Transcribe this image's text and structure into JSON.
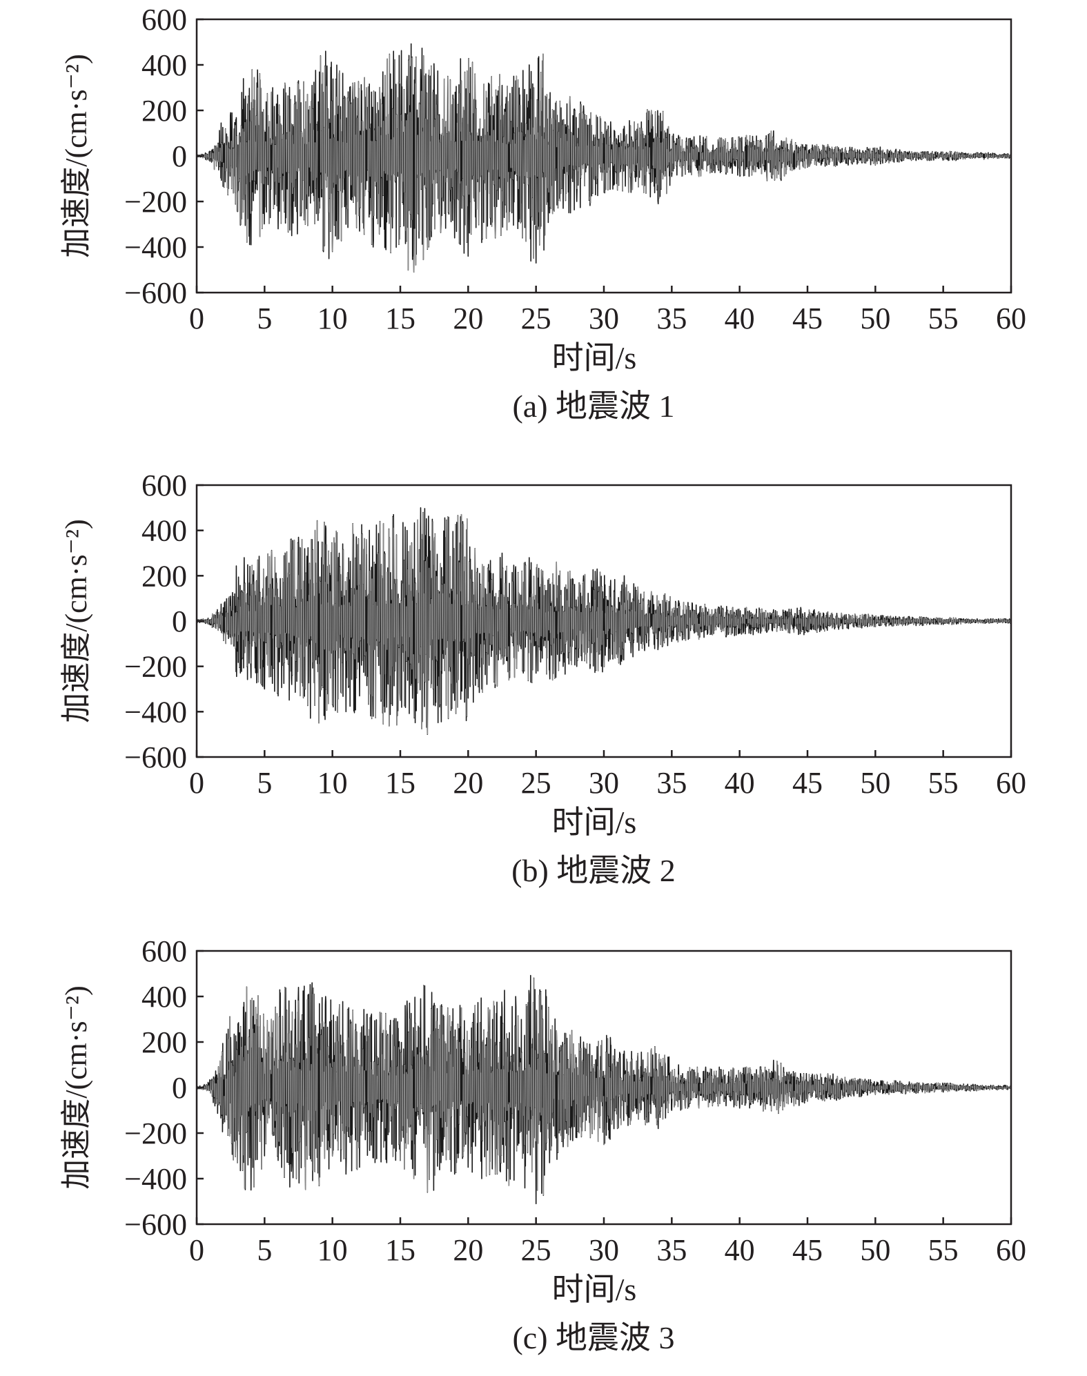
{
  "figure": {
    "panels": [
      {
        "caption": "(a) 地震波 1",
        "xlabel": "时间/s",
        "ylabel": "加速度/(cm·s⁻²)"
      },
      {
        "caption": "(b) 地震波 2",
        "xlabel": "时间/s",
        "ylabel": "加速度/(cm·s⁻²)"
      },
      {
        "caption": "(c) 地震波 3",
        "xlabel": "时间/s",
        "ylabel": "加速度/(cm·s⁻²)"
      }
    ],
    "colors": {
      "trace": "#1a1a1a",
      "trace_light": "#8a8a8a",
      "axis": "#231f20"
    }
  },
  "chart_data": [
    {
      "type": "line",
      "title": "(a) 地震波 1",
      "xlabel": "时间/s",
      "ylabel": "加速度/(cm·s⁻²)",
      "xlim": [
        0,
        60
      ],
      "ylim": [
        -600,
        600
      ],
      "xticks": [
        0,
        5,
        10,
        15,
        20,
        25,
        30,
        35,
        40,
        45,
        50,
        55,
        60
      ],
      "yticks": [
        600,
        400,
        200,
        0,
        -200,
        -400,
        -600
      ],
      "grid": false,
      "series": [
        {
          "x": [
            0,
            0.5,
            1,
            1.5,
            2,
            2.5,
            3,
            3.5,
            4,
            4.5,
            5,
            5.5,
            6,
            6.5,
            7,
            7.5,
            8,
            8.5,
            9,
            9.5,
            10,
            10.5,
            11,
            11.5,
            12,
            12.5,
            13,
            13.5,
            14,
            14.5,
            15,
            15.5,
            16,
            16.5,
            17,
            17.5,
            18,
            18.5,
            19,
            19.5,
            20,
            20.5,
            21,
            21.5,
            22,
            22.5,
            23,
            23.5,
            24,
            24.5,
            25,
            25.5,
            26,
            26.5,
            27,
            27.5,
            28,
            28.5,
            29,
            29.5,
            30,
            30.5,
            31,
            31.5,
            32,
            32.5,
            33,
            33.5,
            34,
            34.5,
            35,
            35.5,
            36,
            36.5,
            37,
            37.5,
            38,
            38.5,
            39,
            39.5,
            40,
            40.5,
            41,
            41.5,
            42,
            42.5,
            43,
            43.5,
            44,
            44.5,
            45,
            45.5,
            46,
            46.5,
            47,
            47.5,
            48,
            48.5,
            49,
            49.5,
            50,
            50.5,
            51,
            51.5,
            52,
            52.5,
            53,
            53.5,
            54,
            54.5,
            55,
            55.5,
            56,
            56.5,
            57,
            57.5,
            58,
            58.5,
            59,
            59.5,
            60
          ],
          "y": [
            0,
            5,
            -10,
            30,
            -80,
            190,
            -160,
            250,
            -390,
            300,
            -200,
            280,
            -320,
            320,
            -350,
            330,
            -300,
            310,
            -250,
            460,
            -420,
            360,
            -300,
            320,
            -330,
            300,
            -400,
            250,
            -290,
            460,
            -310,
            350,
            -510,
            380,
            -410,
            340,
            -300,
            350,
            -360,
            330,
            -440,
            360,
            -380,
            320,
            -360,
            310,
            -290,
            330,
            -360,
            400,
            -470,
            300,
            -250,
            240,
            -230,
            260,
            -200,
            220,
            -180,
            170,
            -160,
            150,
            -150,
            130,
            -160,
            140,
            -130,
            200,
            -210,
            100,
            -90,
            90,
            -80,
            70,
            -90,
            60,
            -70,
            70,
            -80,
            80,
            -70,
            90,
            -60,
            60,
            -90,
            110,
            -100,
            50,
            -60,
            40,
            -50,
            40,
            -40,
            50,
            -40,
            30,
            -40,
            30,
            -30,
            30,
            -40,
            20,
            -30,
            25,
            -20,
            20,
            -20,
            15,
            -20,
            15,
            -15,
            20,
            -15,
            10,
            -10,
            10,
            -15,
            10,
            -10,
            10,
            0
          ]
        }
      ]
    },
    {
      "type": "line",
      "title": "(b) 地震波 2",
      "xlabel": "时间/s",
      "ylabel": "加速度/(cm·s⁻²)",
      "xlim": [
        0,
        60
      ],
      "ylim": [
        -600,
        600
      ],
      "xticks": [
        0,
        5,
        10,
        15,
        20,
        25,
        30,
        35,
        40,
        45,
        50,
        55,
        60
      ],
      "yticks": [
        600,
        400,
        200,
        0,
        -200,
        -400,
        -600
      ],
      "grid": false,
      "series": [
        {
          "x": [
            0,
            0.5,
            1,
            1.5,
            2,
            2.5,
            3,
            3.5,
            4,
            4.5,
            5,
            5.5,
            6,
            6.5,
            7,
            7.5,
            8,
            8.5,
            9,
            9.5,
            10,
            10.5,
            11,
            11.5,
            12,
            12.5,
            13,
            13.5,
            14,
            14.5,
            15,
            15.5,
            16,
            16.5,
            17,
            17.5,
            18,
            18.5,
            19,
            19.5,
            20,
            20.5,
            21,
            21.5,
            22,
            22.5,
            23,
            23.5,
            24,
            24.5,
            25,
            25.5,
            26,
            26.5,
            27,
            27.5,
            28,
            28.5,
            29,
            29.5,
            30,
            30.5,
            31,
            31.5,
            32,
            32.5,
            33,
            33.5,
            34,
            34.5,
            35,
            35.5,
            36,
            36.5,
            37,
            37.5,
            38,
            38.5,
            39,
            39.5,
            40,
            40.5,
            41,
            41.5,
            42,
            42.5,
            43,
            43.5,
            44,
            44.5,
            45,
            45.5,
            46,
            46.5,
            47,
            47.5,
            48,
            48.5,
            49,
            49.5,
            50,
            50.5,
            51,
            51.5,
            52,
            52.5,
            53,
            53.5,
            54,
            54.5,
            55,
            55.5,
            56,
            56.5,
            57,
            57.5,
            58,
            58.5,
            59,
            59.5,
            60
          ],
          "y": [
            0,
            5,
            -10,
            20,
            -60,
            110,
            -90,
            280,
            -250,
            270,
            -300,
            290,
            -330,
            300,
            -280,
            370,
            -300,
            360,
            -450,
            420,
            -370,
            300,
            -400,
            430,
            -330,
            360,
            -420,
            440,
            -380,
            470,
            -350,
            400,
            -300,
            500,
            -500,
            350,
            -330,
            460,
            -350,
            470,
            -340,
            320,
            -300,
            250,
            -280,
            300,
            -260,
            240,
            -220,
            280,
            -230,
            220,
            -210,
            260,
            -200,
            220,
            -200,
            200,
            -190,
            230,
            -150,
            180,
            -160,
            200,
            -140,
            150,
            -130,
            130,
            -110,
            120,
            -90,
            90,
            -80,
            80,
            -80,
            60,
            -60,
            60,
            -70,
            60,
            -50,
            60,
            -60,
            50,
            -50,
            50,
            -40,
            40,
            -50,
            60,
            -40,
            50,
            -40,
            40,
            -35,
            35,
            -30,
            30,
            -30,
            25,
            -25,
            25,
            -20,
            20,
            -20,
            20,
            -20,
            15,
            -15,
            15,
            -15,
            15,
            -10,
            10,
            -10,
            10,
            -10,
            10,
            -10,
            10,
            0
          ]
        }
      ]
    },
    {
      "type": "line",
      "title": "(c) 地震波 3",
      "xlabel": "时间/s",
      "ylabel": "加速度/(cm·s⁻²)",
      "xlim": [
        0,
        60
      ],
      "ylim": [
        -600,
        600
      ],
      "xticks": [
        0,
        5,
        10,
        15,
        20,
        25,
        30,
        35,
        40,
        45,
        50,
        55,
        60
      ],
      "yticks": [
        600,
        400,
        200,
        0,
        -200,
        -400,
        -600
      ],
      "grid": false,
      "series": [
        {
          "x": [
            0,
            0.5,
            1,
            1.5,
            2,
            2.5,
            3,
            3.5,
            4,
            4.5,
            5,
            5.5,
            6,
            6.5,
            7,
            7.5,
            8,
            8.5,
            9,
            9.5,
            10,
            10.5,
            11,
            11.5,
            12,
            12.5,
            13,
            13.5,
            14,
            14.5,
            15,
            15.5,
            16,
            16.5,
            17,
            17.5,
            18,
            18.5,
            19,
            19.5,
            20,
            20.5,
            21,
            21.5,
            22,
            22.5,
            23,
            23.5,
            24,
            24.5,
            25,
            25.5,
            26,
            26.5,
            27,
            27.5,
            28,
            28.5,
            29,
            29.5,
            30,
            30.5,
            31,
            31.5,
            32,
            32.5,
            33,
            33.5,
            34,
            34.5,
            35,
            35.5,
            36,
            36.5,
            37,
            37.5,
            38,
            38.5,
            39,
            39.5,
            40,
            40.5,
            41,
            41.5,
            42,
            42.5,
            43,
            43.5,
            44,
            44.5,
            45,
            45.5,
            46,
            46.5,
            47,
            47.5,
            48,
            48.5,
            49,
            49.5,
            50,
            50.5,
            51,
            51.5,
            52,
            52.5,
            53,
            53.5,
            54,
            54.5,
            55,
            55.5,
            56,
            56.5,
            57,
            57.5,
            58,
            58.5,
            59,
            59.5,
            60
          ],
          "y": [
            0,
            5,
            -10,
            40,
            -120,
            220,
            -330,
            290,
            -450,
            270,
            -300,
            300,
            -320,
            440,
            -340,
            440,
            -350,
            460,
            -380,
            400,
            -300,
            330,
            -380,
            340,
            -350,
            320,
            -300,
            330,
            -330,
            280,
            -320,
            380,
            -400,
            390,
            -460,
            370,
            -330,
            350,
            -380,
            350,
            -350,
            360,
            -400,
            330,
            -380,
            350,
            -430,
            400,
            -310,
            410,
            -510,
            300,
            -330,
            250,
            -260,
            230,
            -220,
            200,
            -220,
            180,
            -250,
            180,
            -180,
            160,
            -140,
            150,
            -140,
            170,
            -180,
            110,
            -100,
            100,
            -90,
            80,
            -90,
            90,
            -80,
            90,
            -80,
            80,
            -90,
            90,
            -70,
            90,
            -70,
            120,
            -80,
            60,
            -80,
            60,
            -60,
            50,
            -50,
            60,
            -50,
            40,
            -40,
            40,
            -35,
            35,
            -30,
            30,
            -30,
            30,
            -25,
            25,
            -25,
            20,
            -20,
            20,
            -20,
            15,
            -15,
            15,
            -15,
            10,
            -10,
            10,
            -10,
            10,
            0
          ]
        }
      ]
    }
  ]
}
